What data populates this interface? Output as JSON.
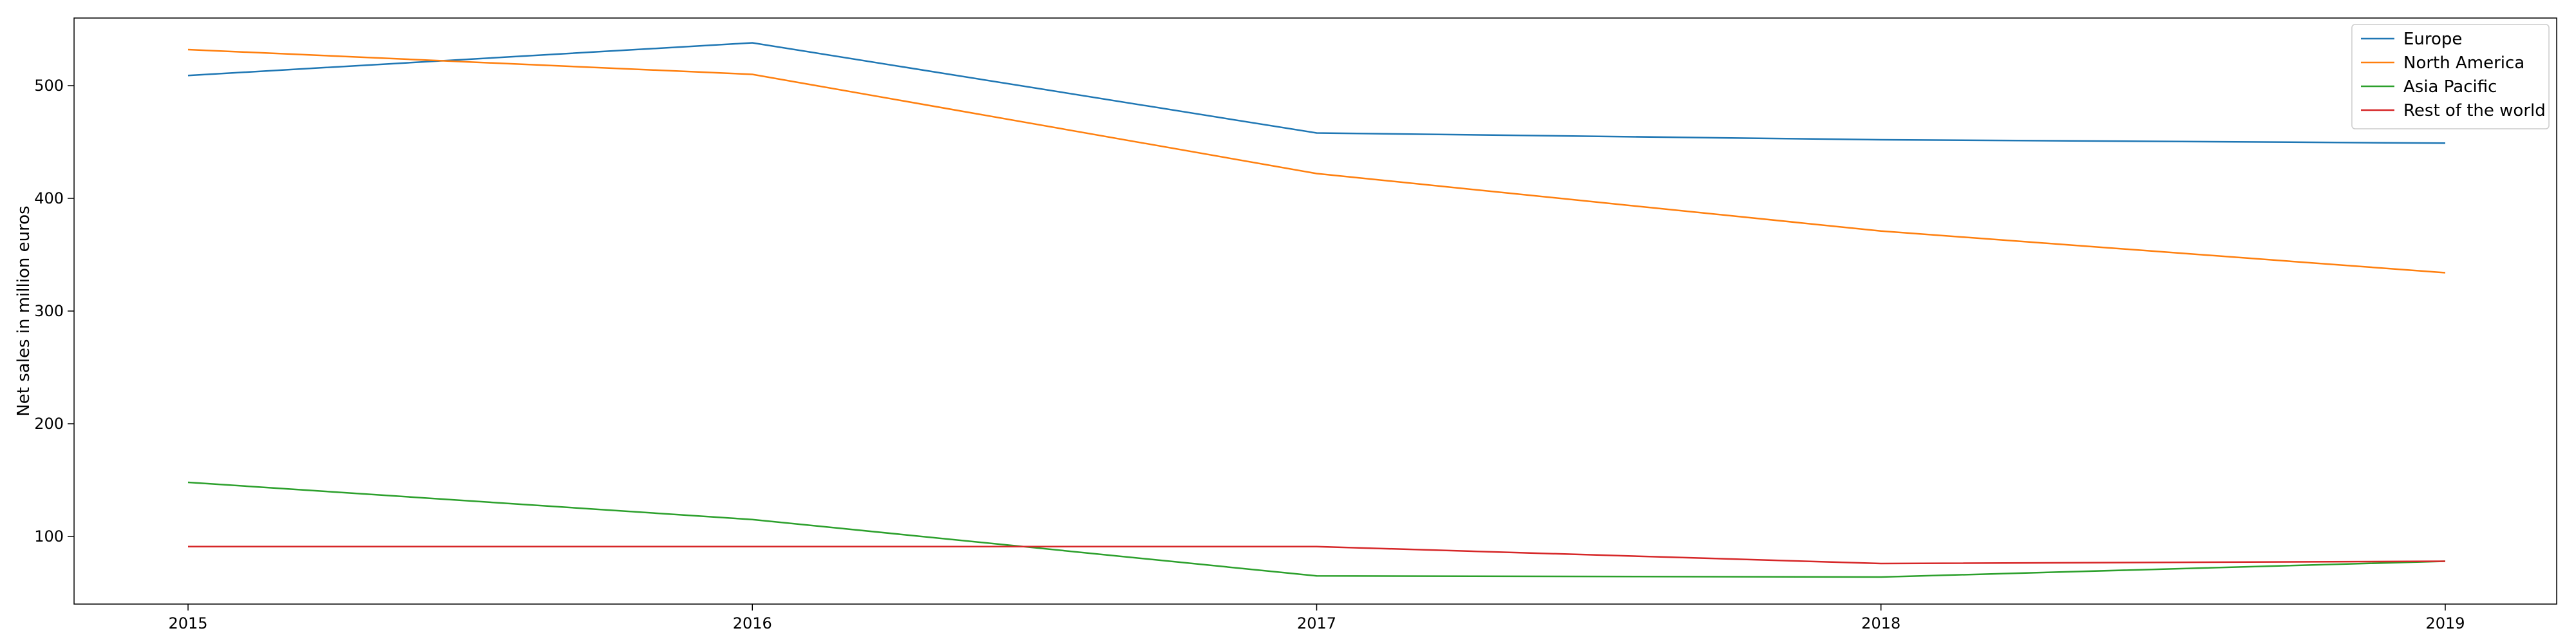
{
  "chart_data": {
    "type": "line",
    "title": "",
    "xlabel": "",
    "ylabel": "Net sales in million euros",
    "categories": [
      "2015",
      "2016",
      "2017",
      "2018",
      "2019"
    ],
    "x_ticks": [
      "2015",
      "2016",
      "2017",
      "2018",
      "2019"
    ],
    "y_ticks": [
      "100",
      "200",
      "300",
      "400",
      "500"
    ],
    "ylim": [
      40,
      560
    ],
    "grid": false,
    "legend_position": "top-right",
    "series": [
      {
        "name": "Europe",
        "color": "#1f77b4",
        "values": [
          509,
          538,
          458,
          452,
          449
        ]
      },
      {
        "name": "North America",
        "color": "#ff7f0e",
        "values": [
          532,
          510,
          422,
          371,
          334
        ]
      },
      {
        "name": "Asia Pacific",
        "color": "#2ca02c",
        "values": [
          148,
          115,
          65,
          64,
          78
        ]
      },
      {
        "name": "Rest of the world",
        "color": "#d62728",
        "values": [
          91,
          91,
          91,
          76,
          78
        ]
      }
    ]
  }
}
